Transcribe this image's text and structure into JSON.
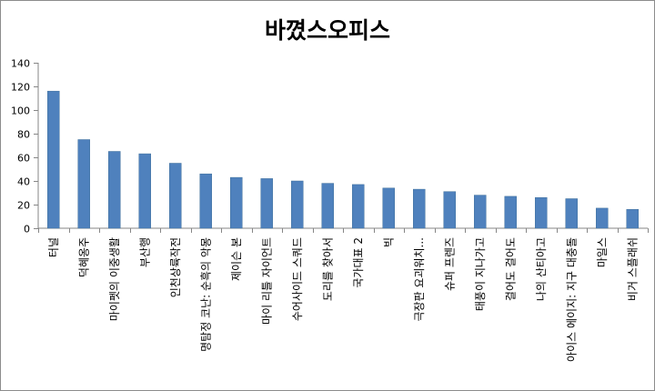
{
  "chart_data": {
    "type": "bar",
    "title": "바꼈스오피스",
    "xlabel": "",
    "ylabel": "",
    "ylim": [
      0,
      140
    ],
    "yticks": [
      0,
      20,
      40,
      60,
      80,
      100,
      120,
      140
    ],
    "grid": false,
    "legend": "none",
    "bar_color": "#4f81bd",
    "categories": [
      "터널",
      "덕혜옹주",
      "마이펫의 이중생활",
      "부산행",
      "인천상륙작전",
      "명탐정 코난: 순흑의 악몽",
      "제이슨 본",
      "마이 리틀 자이언트",
      "수어사이드 스쿼드",
      "도리를 찾아서",
      "국가대표 2",
      "빅",
      "극장판 요괴워치...",
      "슈퍼 프렌즈",
      "태풍이 지나가고",
      "걸어도 걸어도",
      "나의 산티아고",
      "아이스 에이지: 지구 대충돌",
      "마일스",
      "비거 스플래쉬"
    ],
    "values": [
      116,
      75,
      65,
      63,
      55,
      46,
      43,
      42,
      40,
      38,
      37,
      34,
      33,
      31,
      28,
      27,
      26,
      25,
      17,
      16
    ]
  }
}
